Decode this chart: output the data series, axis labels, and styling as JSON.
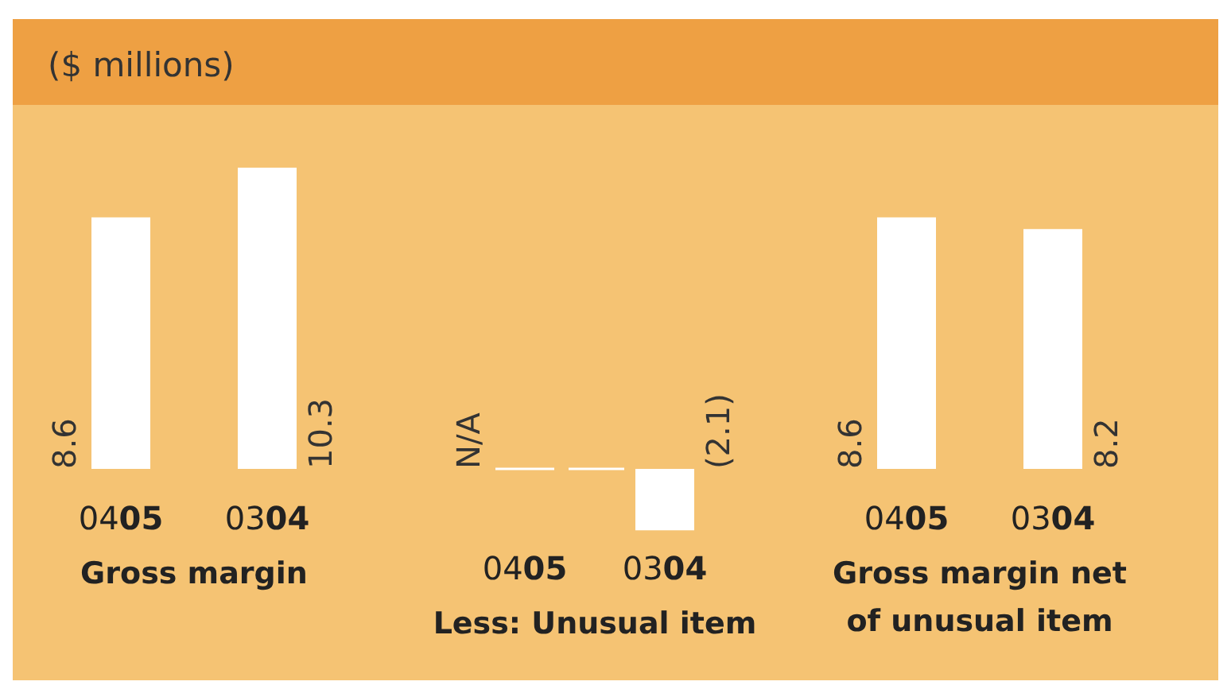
{
  "chart_data": [
    {
      "type": "bar",
      "title": "($ millions)",
      "xlabel": "Gross margin",
      "categories": [
        "0405",
        "0304"
      ],
      "values": [
        8.6,
        10.3
      ],
      "color": "#ffffff",
      "value_labels": [
        "8.6",
        "10.3"
      ]
    },
    {
      "type": "bar",
      "xlabel": "Less: Unusual item",
      "categories": [
        "0405",
        "0304"
      ],
      "values": [
        null,
        -2.1
      ],
      "color": "#ffffff",
      "value_labels": [
        "N/A",
        "(2.1)"
      ]
    },
    {
      "type": "bar",
      "xlabel": "Gross margin net of unusual item",
      "categories": [
        "0405",
        "0304"
      ],
      "values": [
        8.6,
        8.2
      ],
      "color": "#ffffff",
      "value_labels": [
        "8.6",
        "8.2"
      ]
    }
  ]
}
